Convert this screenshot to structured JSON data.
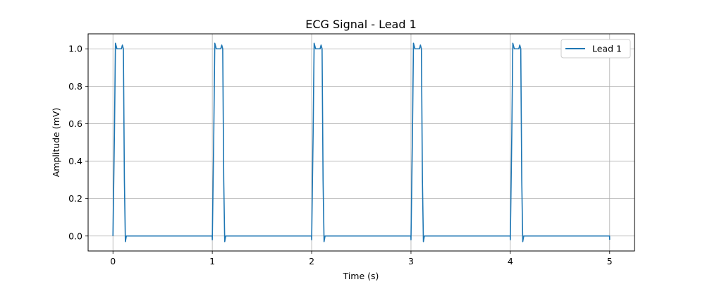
{
  "chart_data": {
    "type": "line",
    "title": "ECG Signal - Lead 1",
    "xlabel": "Time (s)",
    "ylabel": "Amplitude (mV)",
    "xlim": [
      -0.25,
      5.25
    ],
    "ylim": [
      -0.08,
      1.08
    ],
    "xticks": [
      0,
      1,
      2,
      3,
      4,
      5
    ],
    "xtick_labels": [
      "0",
      "1",
      "2",
      "3",
      "4",
      "5"
    ],
    "yticks": [
      0.0,
      0.2,
      0.4,
      0.6,
      0.8,
      1.0
    ],
    "ytick_labels": [
      "0.0",
      "0.2",
      "0.4",
      "0.6",
      "0.8",
      "1.0"
    ],
    "grid": true,
    "legend_position": "upper-right",
    "series": [
      {
        "name": "Lead 1",
        "color": "#1f77b4",
        "x": [
          0.0,
          0.015,
          0.025,
          0.04,
          0.055,
          0.07,
          0.085,
          0.095,
          0.105,
          0.115,
          0.125,
          0.135,
          0.15,
          0.999,
          1.0,
          1.015,
          1.025,
          1.04,
          1.055,
          1.07,
          1.085,
          1.095,
          1.105,
          1.115,
          1.125,
          1.135,
          1.15,
          1.999,
          2.0,
          2.015,
          2.025,
          2.04,
          2.055,
          2.07,
          2.085,
          2.095,
          2.105,
          2.115,
          2.125,
          2.135,
          2.15,
          2.999,
          3.0,
          3.015,
          3.025,
          3.04,
          3.055,
          3.07,
          3.085,
          3.095,
          3.105,
          3.115,
          3.125,
          3.135,
          3.15,
          3.999,
          4.0,
          4.015,
          4.025,
          4.04,
          4.055,
          4.07,
          4.085,
          4.095,
          4.105,
          4.115,
          4.125,
          4.135,
          4.15,
          4.999,
          5.0
        ],
        "y": [
          0.0,
          0.55,
          1.03,
          1.0,
          1.0,
          1.0,
          1.0,
          1.02,
          1.0,
          0.3,
          -0.03,
          0.0,
          0.0,
          0.0,
          -0.02,
          0.55,
          1.03,
          1.0,
          1.0,
          1.0,
          1.0,
          1.02,
          1.0,
          0.3,
          -0.03,
          0.0,
          0.0,
          0.0,
          -0.02,
          0.55,
          1.03,
          1.0,
          1.0,
          1.0,
          1.0,
          1.02,
          1.0,
          0.3,
          -0.03,
          0.0,
          0.0,
          0.0,
          -0.02,
          0.55,
          1.03,
          1.0,
          1.0,
          1.0,
          1.0,
          1.02,
          1.0,
          0.3,
          -0.03,
          0.0,
          0.0,
          0.0,
          -0.02,
          0.55,
          1.03,
          1.0,
          1.0,
          1.0,
          1.0,
          1.02,
          1.0,
          0.3,
          -0.03,
          0.0,
          0.0,
          0.0,
          -0.02
        ]
      }
    ]
  }
}
